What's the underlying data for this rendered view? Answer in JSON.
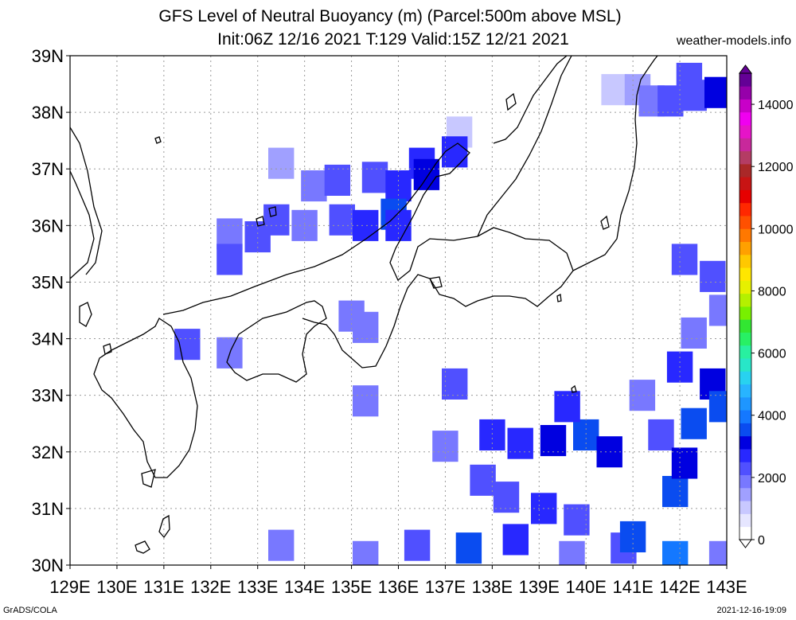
{
  "header": {
    "title_line1": "GFS Level of Neutral Buoyancy (m) (Parcel:500m above MSL)",
    "title_line2": "Init:06Z 12/16 2021 T:129 Valid:15Z 12/21 2021",
    "site": "weather-models.info"
  },
  "footer": {
    "left": "GrADS/COLA",
    "right": "2021-12-16-19:09"
  },
  "map": {
    "lon_range": [
      129,
      143
    ],
    "lat_range": [
      30,
      39
    ],
    "lon_ticks": [
      "129E",
      "130E",
      "131E",
      "132E",
      "133E",
      "134E",
      "135E",
      "136E",
      "137E",
      "138E",
      "139E",
      "140E",
      "141E",
      "142E",
      "143E"
    ],
    "lat_ticks": [
      "30N",
      "31N",
      "32N",
      "33N",
      "34N",
      "35N",
      "36N",
      "37N",
      "38N",
      "39N"
    ],
    "grid": true
  },
  "colorbar": {
    "labels": [
      "0",
      "2000",
      "4000",
      "6000",
      "8000",
      "10000",
      "12000",
      "14000"
    ],
    "colors": [
      "#ffffff",
      "#e6e6ff",
      "#c8c8ff",
      "#a0a0ff",
      "#7878ff",
      "#5050ff",
      "#2828ff",
      "#0000e0",
      "#0a4cf0",
      "#1478ff",
      "#1e96ff",
      "#28b4ff",
      "#28d2f0",
      "#28e6c8",
      "#28f0a0",
      "#28f064",
      "#32e632",
      "#78f000",
      "#b4f000",
      "#e6f000",
      "#ffe600",
      "#ffc800",
      "#ffa000",
      "#ff7800",
      "#ff5000",
      "#ff2800",
      "#e60000",
      "#c81414",
      "#aa2828",
      "#b43c64",
      "#c8289b",
      "#e614c8",
      "#f000f0",
      "#c800c8",
      "#9600aa",
      "#640096"
    ]
  },
  "chart_data": {
    "type": "heatmap",
    "units": "m",
    "cells": [
      {
        "lon": 140.6,
        "lat": 38.4,
        "value": 1200
      },
      {
        "lon": 141.1,
        "lat": 38.4,
        "value": 1400
      },
      {
        "lon": 141.4,
        "lat": 38.2,
        "value": 2000
      },
      {
        "lon": 141.8,
        "lat": 38.2,
        "value": 2400
      },
      {
        "lon": 142.3,
        "lat": 38.3,
        "value": 2200
      },
      {
        "lon": 142.2,
        "lat": 38.6,
        "value": 2300
      },
      {
        "lon": 142.8,
        "lat": 38.35,
        "value": 3000
      },
      {
        "lon": 137.3,
        "lat": 37.65,
        "value": 1200
      },
      {
        "lon": 136.5,
        "lat": 37.1,
        "value": 2600
      },
      {
        "lon": 137.2,
        "lat": 37.3,
        "value": 2800
      },
      {
        "lon": 136.6,
        "lat": 36.9,
        "value": 3000
      },
      {
        "lon": 133.5,
        "lat": 37.1,
        "value": 1600
      },
      {
        "lon": 134.2,
        "lat": 36.7,
        "value": 2000
      },
      {
        "lon": 134.7,
        "lat": 36.8,
        "value": 2200
      },
      {
        "lon": 135.5,
        "lat": 36.85,
        "value": 2400
      },
      {
        "lon": 136.0,
        "lat": 36.7,
        "value": 2600
      },
      {
        "lon": 135.9,
        "lat": 36.2,
        "value": 3400
      },
      {
        "lon": 136.0,
        "lat": 36.0,
        "value": 2800
      },
      {
        "lon": 133.4,
        "lat": 36.1,
        "value": 2200
      },
      {
        "lon": 134.0,
        "lat": 36.0,
        "value": 2000
      },
      {
        "lon": 134.8,
        "lat": 36.1,
        "value": 2400
      },
      {
        "lon": 135.3,
        "lat": 36.0,
        "value": 2600
      },
      {
        "lon": 132.4,
        "lat": 35.85,
        "value": 2000
      },
      {
        "lon": 133.0,
        "lat": 35.8,
        "value": 2200
      },
      {
        "lon": 132.4,
        "lat": 35.4,
        "value": 2100
      },
      {
        "lon": 135.0,
        "lat": 34.4,
        "value": 1800
      },
      {
        "lon": 135.3,
        "lat": 34.2,
        "value": 2000
      },
      {
        "lon": 131.5,
        "lat": 33.9,
        "value": 2400
      },
      {
        "lon": 132.4,
        "lat": 33.75,
        "value": 2000
      },
      {
        "lon": 137.2,
        "lat": 33.2,
        "value": 2200
      },
      {
        "lon": 135.3,
        "lat": 32.9,
        "value": 2000
      },
      {
        "lon": 137.0,
        "lat": 32.1,
        "value": 2000
      },
      {
        "lon": 138.0,
        "lat": 32.3,
        "value": 2500
      },
      {
        "lon": 138.6,
        "lat": 32.15,
        "value": 2700
      },
      {
        "lon": 139.3,
        "lat": 32.2,
        "value": 3300
      },
      {
        "lon": 140.0,
        "lat": 32.3,
        "value": 3600
      },
      {
        "lon": 140.5,
        "lat": 32.0,
        "value": 3200
      },
      {
        "lon": 139.6,
        "lat": 32.8,
        "value": 2800
      },
      {
        "lon": 137.8,
        "lat": 31.5,
        "value": 2200
      },
      {
        "lon": 138.3,
        "lat": 31.2,
        "value": 2400
      },
      {
        "lon": 139.1,
        "lat": 31.0,
        "value": 2600
      },
      {
        "lon": 139.8,
        "lat": 30.8,
        "value": 2200
      },
      {
        "lon": 138.5,
        "lat": 30.45,
        "value": 2500
      },
      {
        "lon": 137.5,
        "lat": 30.3,
        "value": 3400
      },
      {
        "lon": 136.4,
        "lat": 30.35,
        "value": 2200
      },
      {
        "lon": 139.7,
        "lat": 30.15,
        "value": 2000
      },
      {
        "lon": 133.5,
        "lat": 30.35,
        "value": 1800
      },
      {
        "lon": 135.3,
        "lat": 30.15,
        "value": 1800
      },
      {
        "lon": 140.8,
        "lat": 30.3,
        "value": 2200
      },
      {
        "lon": 141.0,
        "lat": 30.5,
        "value": 3500
      },
      {
        "lon": 141.9,
        "lat": 30.15,
        "value": 3800
      },
      {
        "lon": 142.9,
        "lat": 30.15,
        "value": 2000
      },
      {
        "lon": 142.7,
        "lat": 35.1,
        "value": 2400
      },
      {
        "lon": 142.1,
        "lat": 35.4,
        "value": 2200
      },
      {
        "lon": 142.9,
        "lat": 34.5,
        "value": 2000
      },
      {
        "lon": 142.3,
        "lat": 34.1,
        "value": 2000
      },
      {
        "lon": 142.0,
        "lat": 33.5,
        "value": 2600
      },
      {
        "lon": 142.7,
        "lat": 33.2,
        "value": 3000
      },
      {
        "lon": 142.3,
        "lat": 32.5,
        "value": 3400
      },
      {
        "lon": 142.9,
        "lat": 32.8,
        "value": 3700
      },
      {
        "lon": 141.6,
        "lat": 32.3,
        "value": 2400
      },
      {
        "lon": 141.9,
        "lat": 31.3,
        "value": 3500
      },
      {
        "lon": 142.1,
        "lat": 31.8,
        "value": 3200
      },
      {
        "lon": 141.2,
        "lat": 33.0,
        "value": 2000
      }
    ]
  }
}
